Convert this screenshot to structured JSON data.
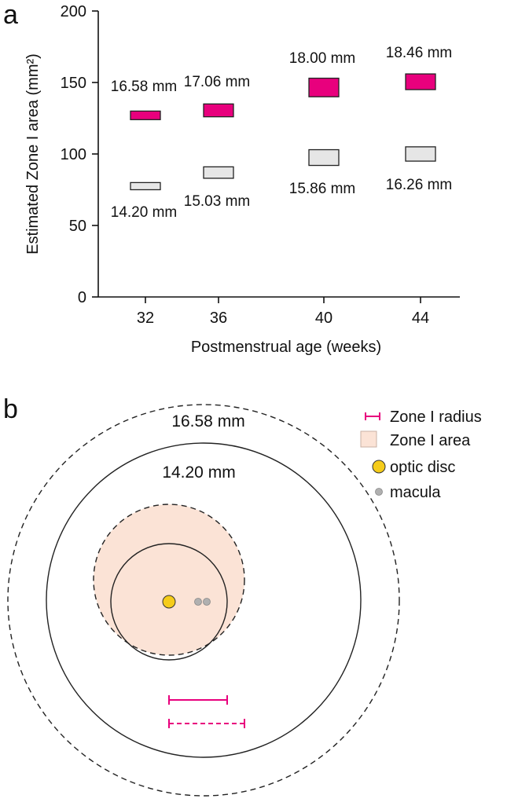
{
  "panel_a_label": "a",
  "panel_b_label": "b",
  "chart_data": {
    "type": "bar",
    "subtype": "floating-range",
    "xlabel": "Postmenstrual age (weeks)",
    "ylabel": "Estimated Zone I area (mm²)",
    "ylim": [
      0,
      200
    ],
    "yticks": [
      0,
      50,
      100,
      150,
      200
    ],
    "categories": [
      "32",
      "36",
      "40",
      "44"
    ],
    "series": [
      {
        "color": "#e8007d",
        "ranges": [
          [
            124,
            130
          ],
          [
            126,
            135
          ],
          [
            140,
            153
          ],
          [
            145,
            156
          ]
        ],
        "labels": [
          "16.58 mm",
          "17.06 mm",
          "18.00 mm",
          "18.46 mm"
        ]
      },
      {
        "color": "#e6e6e6",
        "ranges": [
          [
            75,
            80
          ],
          [
            83,
            91
          ],
          [
            92,
            103
          ],
          [
            95,
            105
          ]
        ],
        "labels": [
          "14.20 mm",
          "15.03 mm",
          "15.86 mm",
          "16.26 mm"
        ]
      }
    ],
    "grid": false
  },
  "diagram": {
    "outer_dashed_label": "16.58 mm",
    "outer_solid_label": "14.20 mm",
    "zone_fill_color": "#fbe3d6",
    "optic_disc_color": "#f5cc1a",
    "macula_color": "#b0b0b0",
    "radius_color": "#e8007d",
    "legend": [
      {
        "icon": "radius-bar-icon",
        "label": "Zone I radius"
      },
      {
        "icon": "zone-area-square-icon",
        "label": "Zone I area"
      },
      {
        "icon": "optic-disc-dot-icon",
        "label": "optic disc"
      },
      {
        "icon": "macula-dot-icon",
        "label": "macula"
      }
    ]
  }
}
